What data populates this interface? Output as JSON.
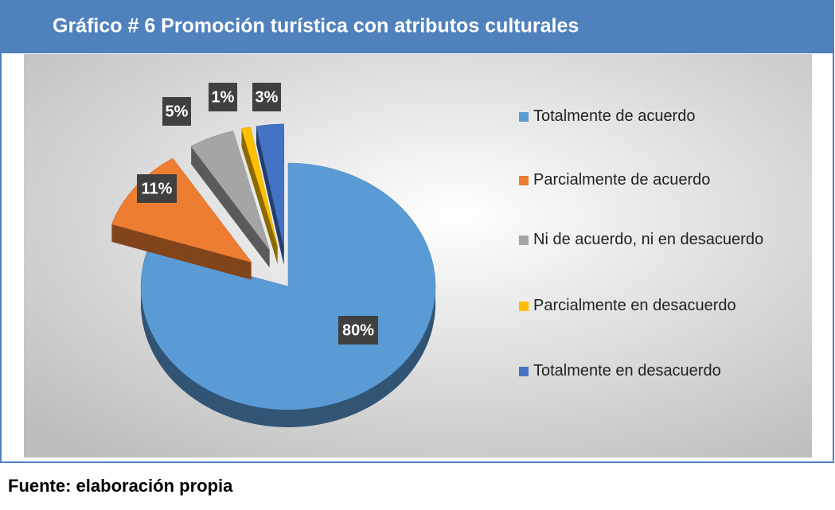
{
  "chart_data": {
    "type": "pie",
    "title": "Gráfico # 6 Promoción turística con atributos culturales",
    "categories": [
      "Totalmente de acuerdo",
      "Parcialmente de acuerdo",
      "Ni de acuerdo, ni en desacuerdo",
      "Parcialmente en desacuerdo",
      "Totalmente en desacuerdo"
    ],
    "values": [
      80,
      11,
      5,
      1,
      3
    ],
    "value_labels": [
      "80%",
      "11%",
      "5%",
      "1%",
      "3%"
    ],
    "colors": [
      "#5b9bd5",
      "#ed7d31",
      "#a5a5a5",
      "#ffc000",
      "#4472c4"
    ],
    "legend": "right",
    "source": "Fuente:  elaboración propia"
  }
}
